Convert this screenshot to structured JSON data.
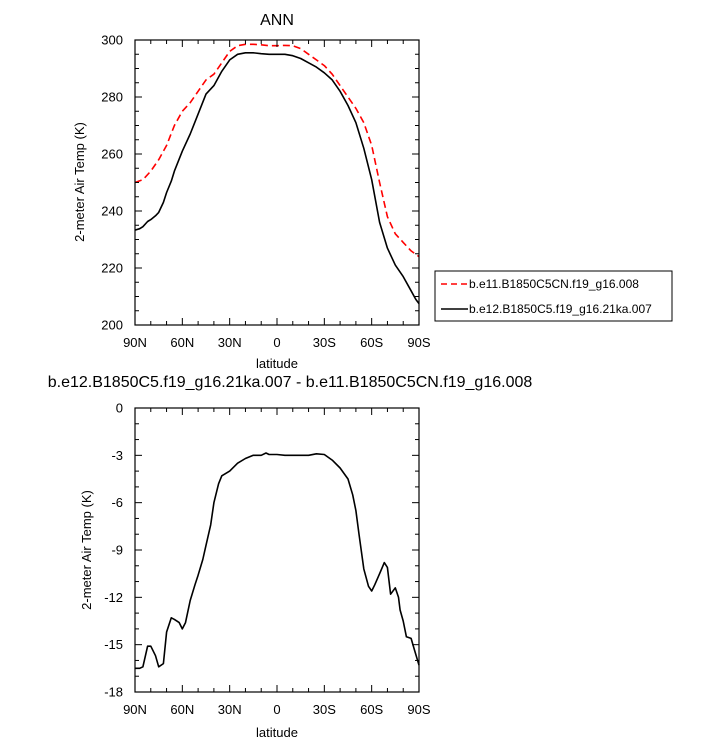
{
  "chart_data": [
    {
      "type": "line",
      "title": "ANN",
      "xlabel": "latitude",
      "ylabel": "2-meter Air Temp (K)",
      "x_tick_labels": [
        "90N",
        "60N",
        "30N",
        "0",
        "30S",
        "60S",
        "90S"
      ],
      "y_tick_labels": [
        "200",
        "220",
        "240",
        "260",
        "280",
        "300"
      ],
      "xlim": [
        90,
        -90
      ],
      "ylim": [
        200,
        300
      ],
      "legend_position": "right",
      "series": [
        {
          "name": "b.e11.B1850C5CN.f19_g16.008",
          "color": "#ff0000",
          "dash": "dashed",
          "x": [
            90,
            85,
            80,
            75,
            70,
            65,
            60,
            55,
            50,
            45,
            40,
            35,
            30,
            25,
            20,
            15,
            10,
            5,
            0,
            -5,
            -10,
            -15,
            -20,
            -25,
            -30,
            -35,
            -40,
            -45,
            -50,
            -55,
            -60,
            -65,
            -70,
            -75,
            -80,
            -85,
            -90
          ],
          "y": [
            250,
            251,
            254,
            258,
            263,
            270,
            275,
            278,
            282,
            286,
            288,
            292,
            296,
            298,
            298.5,
            298.5,
            298.3,
            298,
            298,
            298.1,
            298,
            297,
            295,
            293,
            291,
            288,
            284,
            280,
            276,
            271,
            263,
            250,
            238,
            232,
            229,
            226,
            224
          ]
        },
        {
          "name": "b.e12.B1850C5.f19_g16.21ka.007",
          "color": "#000000",
          "dash": "solid",
          "x": [
            90,
            87,
            85,
            82,
            80,
            77,
            75,
            72,
            70,
            67,
            65,
            60,
            55,
            50,
            45,
            40,
            35,
            30,
            25,
            20,
            15,
            10,
            5,
            0,
            -5,
            -10,
            -15,
            -20,
            -25,
            -30,
            -35,
            -40,
            -45,
            -50,
            -55,
            -60,
            -65,
            -70,
            -75,
            -80,
            -85,
            -88,
            -90
          ],
          "y": [
            233.3,
            233.8,
            234.5,
            236.3,
            237,
            238.3,
            239.5,
            243,
            246.5,
            250.5,
            254,
            261,
            267,
            274,
            281,
            284,
            289,
            293,
            295,
            295.5,
            295.5,
            295.2,
            295,
            295,
            295,
            294.5,
            293.5,
            292,
            290.5,
            288.5,
            286,
            282,
            277,
            271,
            262,
            251,
            236,
            227,
            221,
            217,
            212,
            209,
            207.5
          ]
        }
      ]
    },
    {
      "type": "line",
      "title": "b.e12.B1850C5.f19_g16.21ka.007 - b.e11.B1850C5CN.f19_g16.008",
      "xlabel": "latitude",
      "ylabel": "2-meter Air Temp (K)",
      "x_tick_labels": [
        "90N",
        "60N",
        "30N",
        "0",
        "30S",
        "60S",
        "90S"
      ],
      "y_tick_labels": [
        "0",
        "-3",
        "-6",
        "-9",
        "-12",
        "-15",
        "-18"
      ],
      "xlim": [
        90,
        -90
      ],
      "ylim": [
        -18,
        0
      ],
      "series": [
        {
          "color": "#000000",
          "dash": "solid",
          "x": [
            90,
            87,
            85,
            82,
            80,
            77,
            75,
            72,
            70,
            67,
            65,
            62,
            60,
            58,
            55,
            52,
            50,
            47,
            45,
            42,
            40,
            37,
            35,
            30,
            25,
            20,
            15,
            10,
            7,
            5,
            0,
            -5,
            -10,
            -15,
            -20,
            -25,
            -30,
            -35,
            -40,
            -45,
            -48,
            -50,
            -52,
            -55,
            -58,
            -60,
            -62,
            -65,
            -68,
            -70,
            -72,
            -75,
            -77,
            -78,
            -80,
            -82,
            -85,
            -87,
            -90
          ],
          "y": [
            -16.5,
            -16.5,
            -16.4,
            -15.1,
            -15.1,
            -15.7,
            -16.4,
            -16.2,
            -14.2,
            -13.3,
            -13.4,
            -13.6,
            -14,
            -13.6,
            -12.2,
            -11.2,
            -10.6,
            -9.6,
            -8.7,
            -7.4,
            -6,
            -4.8,
            -4.3,
            -4,
            -3.5,
            -3.2,
            -3,
            -3,
            -2.85,
            -2.95,
            -2.95,
            -3,
            -3,
            -3,
            -3,
            -2.9,
            -2.95,
            -3.3,
            -3.8,
            -4.5,
            -5.5,
            -6.5,
            -8,
            -10.2,
            -11.3,
            -11.6,
            -11.2,
            -10.5,
            -9.8,
            -10.1,
            -11.8,
            -11.4,
            -12,
            -12.8,
            -13.5,
            -14.5,
            -14.6,
            -15.3,
            -16.3
          ]
        }
      ]
    }
  ]
}
